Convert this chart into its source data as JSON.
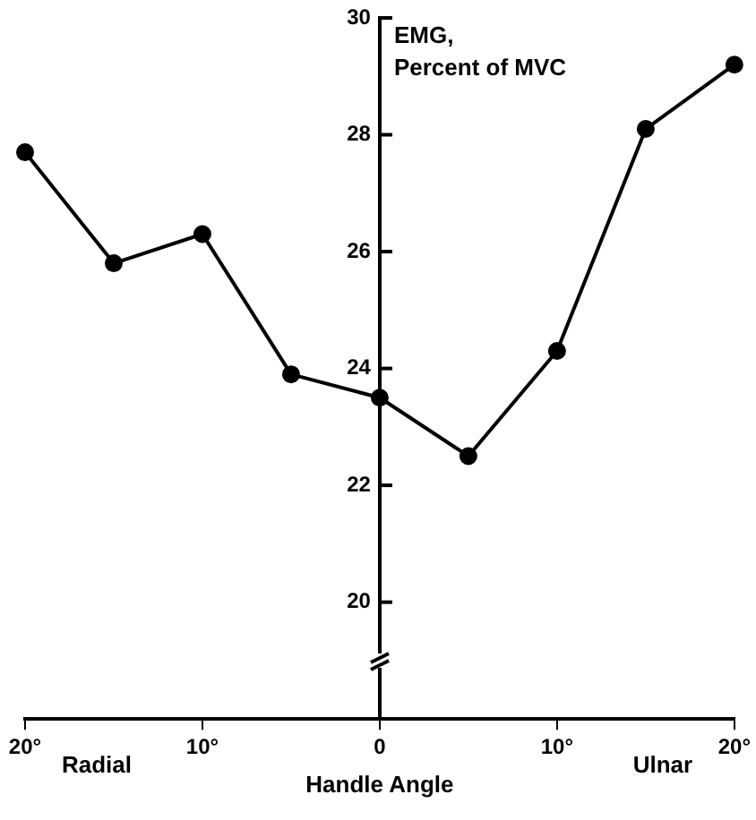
{
  "chart_data": {
    "type": "line",
    "ylabel": "EMG, Percent of MVC",
    "xlabel": "Handle Angle",
    "x": [
      -20,
      -15,
      -10,
      -5,
      0,
      5,
      10,
      15,
      20
    ],
    "series": [
      {
        "color": "#000000",
        "values": [
          27.7,
          25.8,
          26.3,
          23.9,
          23.5,
          22.5,
          24.3,
          28.1,
          29.2
        ]
      }
    ],
    "xlim": [
      -20,
      20
    ],
    "xticks": [
      {
        "value": -20,
        "label": "20°"
      },
      {
        "value": -10,
        "label": "10°"
      },
      {
        "value": 0,
        "label": "0"
      },
      {
        "value": 10,
        "label": "10°"
      },
      {
        "value": 20,
        "label": "20°"
      }
    ],
    "ylim": [
      18,
      30
    ],
    "yticks": [
      20,
      22,
      24,
      26,
      28,
      30
    ],
    "annotations": [
      "Radial",
      "Ulnar"
    ],
    "marker": "circle",
    "line_style": "solid",
    "grid": false,
    "legend": false
  }
}
